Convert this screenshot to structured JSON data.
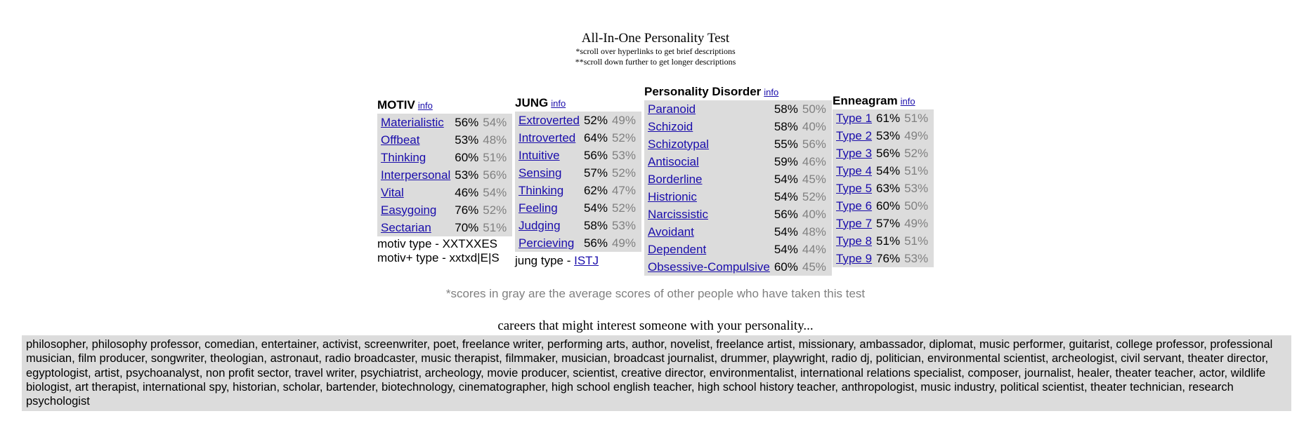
{
  "header": {
    "title": "All-In-One Personality Test",
    "note1": "*scroll over hyperlinks to get brief descriptions",
    "note2": "**scroll down further to get longer descriptions"
  },
  "motiv": {
    "title": "MOTIV",
    "info": "info",
    "rows": [
      {
        "trait": "Materialistic",
        "score": "56%",
        "avg": "54%"
      },
      {
        "trait": "Offbeat",
        "score": "53%",
        "avg": "48%"
      },
      {
        "trait": "Thinking",
        "score": "60%",
        "avg": "51%"
      },
      {
        "trait": "Interpersonal",
        "score": "53%",
        "avg": "56%"
      },
      {
        "trait": "Vital",
        "score": "46%",
        "avg": "54%"
      },
      {
        "trait": "Easygoing",
        "score": "76%",
        "avg": "52%"
      },
      {
        "trait": "Sectarian",
        "score": "70%",
        "avg": "51%"
      }
    ],
    "type_line": "motiv type - XXTXXES",
    "plus_type_line": "motiv+ type - xxtxd|E|S"
  },
  "jung": {
    "title": "JUNG",
    "info": "info",
    "rows": [
      {
        "trait": "Extroverted",
        "score": "52%",
        "avg": "49%"
      },
      {
        "trait": "Introverted",
        "score": "64%",
        "avg": "52%"
      },
      {
        "trait": "Intuitive",
        "score": "56%",
        "avg": "53%"
      },
      {
        "trait": "Sensing",
        "score": "57%",
        "avg": "52%"
      },
      {
        "trait": "Thinking",
        "score": "62%",
        "avg": "47%"
      },
      {
        "trait": "Feeling",
        "score": "54%",
        "avg": "52%"
      },
      {
        "trait": "Judging",
        "score": "58%",
        "avg": "53%"
      },
      {
        "trait": "Percieving",
        "score": "56%",
        "avg": "49%"
      }
    ],
    "type_prefix": "jung type - ",
    "type_value": "ISTJ"
  },
  "disorder": {
    "title": "Personality Disorder",
    "info": "info",
    "rows": [
      {
        "trait": "Paranoid",
        "score": "58%",
        "avg": "50%"
      },
      {
        "trait": "Schizoid",
        "score": "58%",
        "avg": "40%"
      },
      {
        "trait": "Schizotypal",
        "score": "55%",
        "avg": "56%"
      },
      {
        "trait": "Antisocial",
        "score": "59%",
        "avg": "46%"
      },
      {
        "trait": "Borderline",
        "score": "54%",
        "avg": "45%"
      },
      {
        "trait": "Histrionic",
        "score": "54%",
        "avg": "52%"
      },
      {
        "trait": "Narcissistic",
        "score": "56%",
        "avg": "40%"
      },
      {
        "trait": "Avoidant",
        "score": "54%",
        "avg": "48%"
      },
      {
        "trait": "Dependent",
        "score": "54%",
        "avg": "44%"
      },
      {
        "trait": "Obsessive-Compulsive",
        "score": "60%",
        "avg": "45%"
      }
    ]
  },
  "enneagram": {
    "title": "Enneagram",
    "info": "info",
    "rows": [
      {
        "trait": "Type 1",
        "score": "61%",
        "avg": "51%"
      },
      {
        "trait": "Type 2",
        "score": "53%",
        "avg": "49%"
      },
      {
        "trait": "Type 3",
        "score": "56%",
        "avg": "52%"
      },
      {
        "trait": "Type 4",
        "score": "54%",
        "avg": "51%"
      },
      {
        "trait": "Type 5",
        "score": "63%",
        "avg": "53%"
      },
      {
        "trait": "Type 6",
        "score": "60%",
        "avg": "50%"
      },
      {
        "trait": "Type 7",
        "score": "57%",
        "avg": "49%"
      },
      {
        "trait": "Type 8",
        "score": "51%",
        "avg": "51%"
      },
      {
        "trait": "Type 9",
        "score": "76%",
        "avg": "53%"
      }
    ]
  },
  "footnote": "*scores in gray are the average scores of other people who have taken this test",
  "careers": {
    "title": "careers that might interest someone with your personality...",
    "list": "philosopher, philosophy professor, comedian, entertainer, activist, screenwriter, poet, freelance writer, performing arts, author, novelist, freelance artist, missionary, ambassador, diplomat, music performer, guitarist, college professor, professional musician, film producer, songwriter, theologian, astronaut, radio broadcaster, music therapist, filmmaker, musician, broadcast journalist, drummer, playwright, radio dj, politician, environmental scientist, archeologist, civil servant, theater director, egyptologist, artist, psychoanalyst, non profit sector, travel writer, psychiatrist, archeology, movie producer, scientist, creative director, environmentalist, international relations specialist, composer, journalist, healer, theater teacher, actor, wildlife biologist, art therapist, international spy, historian, scholar, bartender, biotechnology, cinematographer, high school english teacher, high school history teacher, anthropologist, music industry, political scientist, theater technician, research psychologist"
  },
  "colors": {
    "link": "#1a0dab",
    "panel_bg": "#dcdcdc",
    "avg_text": "#808080"
  }
}
